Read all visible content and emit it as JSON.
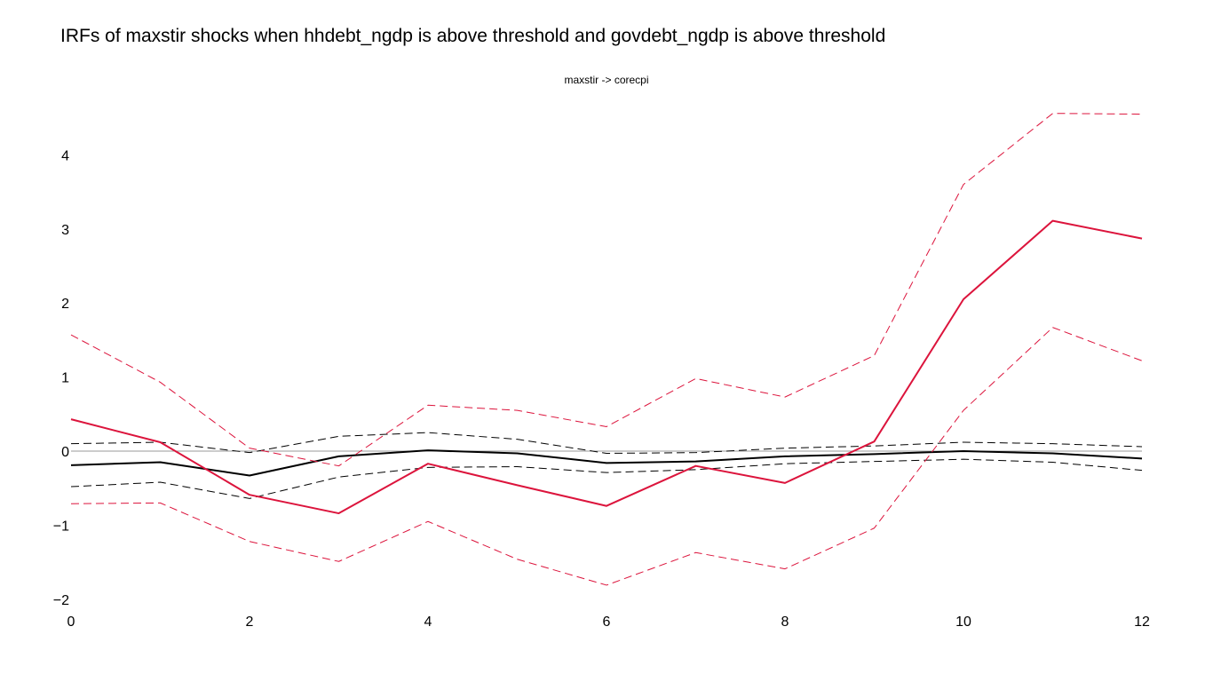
{
  "title": "IRFs of maxstir shocks when hhdebt_ngdp is above threshold and govdebt_ngdp is above threshold",
  "chart_data": {
    "type": "line",
    "title": "IRFs of maxstir shocks when hhdebt_ngdp is above threshold and govdebt_ngdp is above threshold",
    "subtitle": "maxstir -> corecpi",
    "xlabel": "",
    "ylabel": "",
    "x": [
      0,
      1,
      2,
      3,
      4,
      5,
      6,
      7,
      8,
      9,
      10,
      11,
      12
    ],
    "xlim": [
      0,
      12
    ],
    "ylim": [
      -2.1,
      4.6
    ],
    "x_ticks": [
      0,
      2,
      4,
      6,
      8,
      10,
      12
    ],
    "y_ticks": [
      -2,
      -1,
      0,
      1,
      2,
      3,
      4
    ],
    "x_tick_labels": [
      "0",
      "2",
      "4",
      "6",
      "8",
      "10",
      "12"
    ],
    "y_tick_labels": [
      "−2",
      "−1",
      "0",
      "1",
      "2",
      "3",
      "4"
    ],
    "grid": false,
    "zero_line": true,
    "legend": "none",
    "series": [
      {
        "color": "#000000",
        "dash": false,
        "values": [
          -0.19,
          -0.15,
          -0.33,
          -0.07,
          0.01,
          -0.03,
          -0.16,
          -0.14,
          -0.07,
          -0.04,
          0.0,
          -0.03,
          -0.1
        ]
      },
      {
        "color": "#000000",
        "dash": true,
        "values": [
          0.1,
          0.12,
          -0.02,
          0.2,
          0.25,
          0.16,
          -0.03,
          -0.02,
          0.04,
          0.07,
          0.12,
          0.1,
          0.06
        ]
      },
      {
        "color": "#000000",
        "dash": true,
        "values": [
          -0.48,
          -0.42,
          -0.64,
          -0.35,
          -0.22,
          -0.21,
          -0.29,
          -0.25,
          -0.17,
          -0.14,
          -0.11,
          -0.15,
          -0.26
        ]
      },
      {
        "color": "#dc143c",
        "dash": false,
        "values": [
          0.43,
          0.12,
          -0.59,
          -0.84,
          -0.17,
          -0.46,
          -0.74,
          -0.2,
          -0.43,
          0.13,
          2.05,
          3.11,
          2.87
        ]
      },
      {
        "color": "#dc143c",
        "dash": true,
        "values": [
          1.57,
          0.93,
          0.04,
          -0.2,
          0.62,
          0.55,
          0.33,
          0.98,
          0.73,
          1.29,
          3.6,
          4.56,
          4.55
        ]
      },
      {
        "color": "#dc143c",
        "dash": true,
        "values": [
          -0.71,
          -0.7,
          -1.22,
          -1.49,
          -0.95,
          -1.46,
          -1.81,
          -1.37,
          -1.59,
          -1.04,
          0.55,
          1.67,
          1.22
        ]
      }
    ]
  }
}
